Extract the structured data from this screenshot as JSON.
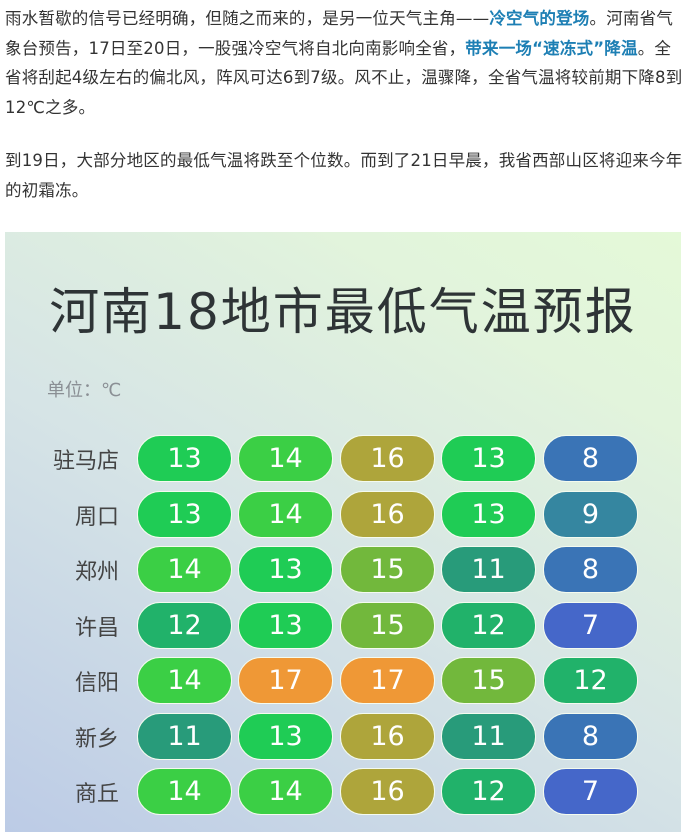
{
  "article": {
    "p1": [
      {
        "text": "雨水暂歇的信号已经明确，但随之而来的，是另一位天气主角——",
        "hl": false
      },
      {
        "text": "冷空气的登场",
        "hl": true
      },
      {
        "text": "。河南省气象台预告，17日至20日，一股强冷空气将自北向南影响全省，",
        "hl": false
      },
      {
        "text": "带来一场“速冻式”降温",
        "hl": true
      },
      {
        "text": "。全省将刮起4级左右的偏北风，阵风可达6到7级。风不止，温骤降，全省气温将较前期下降8到12℃之多。",
        "hl": false
      }
    ],
    "p2": "到19日，大部分地区的最低气温将跌至个位数。而到了21日早晨，我省西部山区将迎来今年的初霜冻。",
    "highlight_color": "#1d7fb4"
  },
  "infographic": {
    "title": "河南18地市最低气温预报",
    "unit": "单位：℃",
    "rows": [
      {
        "city": "驻马店",
        "values": [
          13,
          14,
          16,
          13,
          8
        ]
      },
      {
        "city": "周口",
        "values": [
          13,
          14,
          16,
          13,
          9
        ]
      },
      {
        "city": "郑州",
        "values": [
          14,
          13,
          15,
          11,
          8
        ]
      },
      {
        "city": "许昌",
        "values": [
          12,
          13,
          15,
          12,
          7
        ]
      },
      {
        "city": "信阳",
        "values": [
          14,
          17,
          17,
          15,
          12
        ]
      },
      {
        "city": "新乡",
        "values": [
          11,
          13,
          16,
          11,
          8
        ]
      },
      {
        "city": "商丘",
        "values": [
          14,
          14,
          16,
          12,
          7
        ]
      }
    ],
    "value_colors": {
      "7": "#4567c9",
      "8": "#3a74b6",
      "9": "#3586a0",
      "11": "#289b7a",
      "12": "#21b26a",
      "13": "#1fcc55",
      "14": "#3bcf45",
      "15": "#72b83c",
      "16": "#aea53b",
      "17": "#ef9836"
    }
  }
}
